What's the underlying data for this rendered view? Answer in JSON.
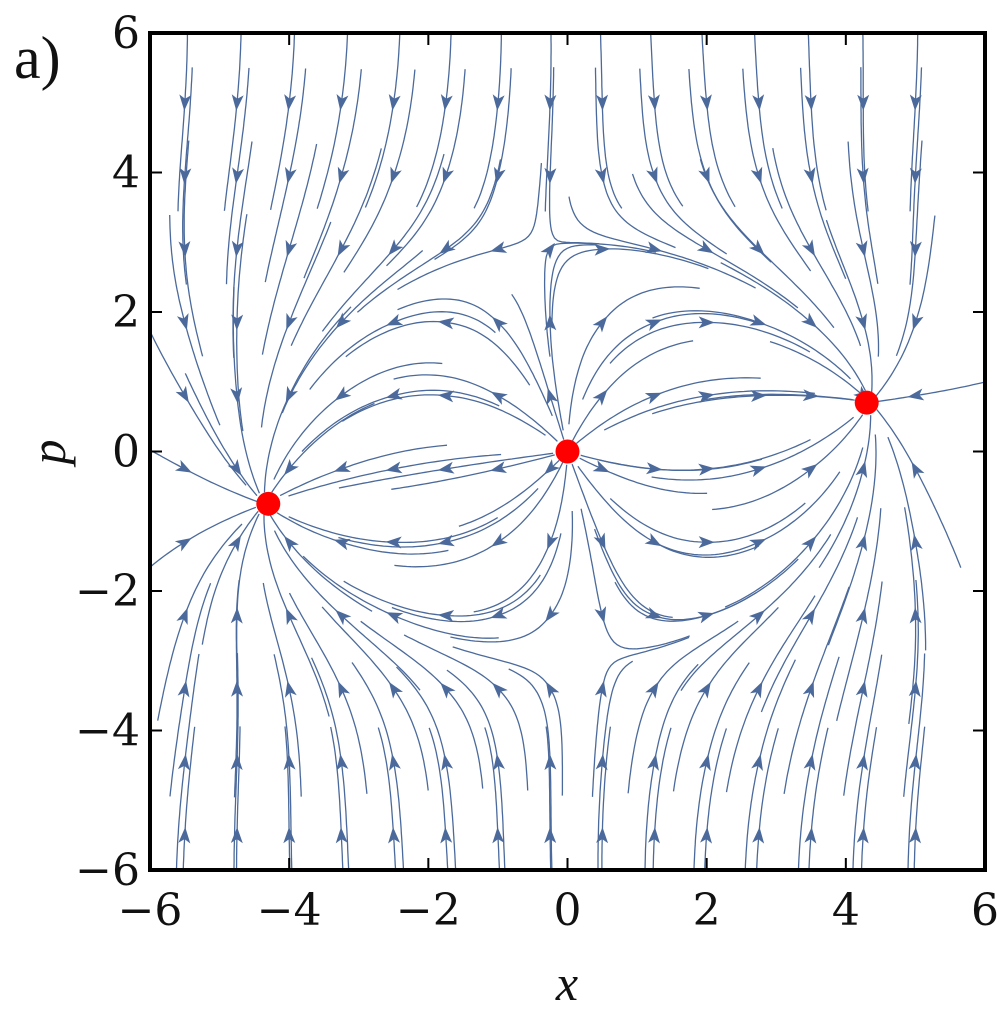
{
  "panel_label": "a)",
  "chart_data": {
    "type": "streamplot",
    "xlabel": "x",
    "ylabel": "p",
    "xlim": [
      -6,
      6
    ],
    "ylim": [
      -6,
      6
    ],
    "x_ticks": [
      {
        "value": -6,
        "label": "−6"
      },
      {
        "value": -4,
        "label": "−4"
      },
      {
        "value": -2,
        "label": "−2"
      },
      {
        "value": 0,
        "label": "0"
      },
      {
        "value": 2,
        "label": "2"
      },
      {
        "value": 4,
        "label": "4"
      },
      {
        "value": 6,
        "label": "6"
      }
    ],
    "y_ticks": [
      {
        "value": -6,
        "label": "−6"
      },
      {
        "value": -4,
        "label": "−4"
      },
      {
        "value": -2,
        "label": "−2"
      },
      {
        "value": 0,
        "label": "0"
      },
      {
        "value": 2,
        "label": "2"
      },
      {
        "value": 4,
        "label": "4"
      },
      {
        "value": 6,
        "label": "6"
      }
    ],
    "fixed_points": [
      {
        "x": -4.3,
        "y": -0.75
      },
      {
        "x": 0.0,
        "y": 0.0
      },
      {
        "x": 4.3,
        "y": 0.7
      }
    ],
    "stream_color": "#4b6a9b",
    "point_color": "#ff0000",
    "grid": false
  }
}
